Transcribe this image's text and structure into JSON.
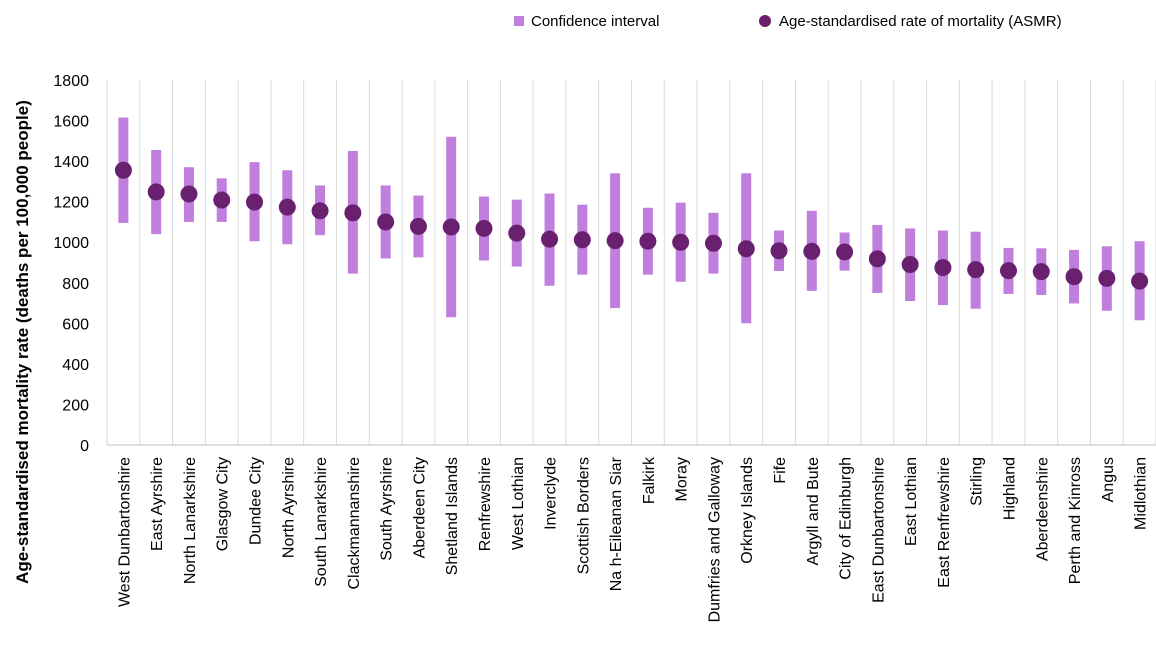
{
  "chart_data": {
    "type": "scatter",
    "title": "",
    "xlabel": "",
    "ylabel": "Age-standardised mortality rate (deaths per 100,000 people)",
    "ylim": [
      0,
      1800
    ],
    "yticks": [
      0,
      200,
      400,
      600,
      800,
      1000,
      1200,
      1400,
      1600,
      1800
    ],
    "grid": "vertical",
    "legend_position": "top-right",
    "categories": [
      "West Dunbartonshire",
      "East Ayrshire",
      "North Lanarkshire",
      "Glasgow City",
      "Dundee City",
      "North Ayrshire",
      "South Lanarkshire",
      "Clackmannanshire",
      "South Ayrshire",
      "Aberdeen City",
      "Shetland Islands",
      "Renfrewshire",
      "West Lothian",
      "Inverclyde",
      "Scottish Borders",
      "Na h-Eileanan Siar",
      "Falkirk",
      "Moray",
      "Dumfries and Galloway",
      "Orkney Islands",
      "Fife",
      "Argyll and Bute",
      "City of Edinburgh",
      "East Dunbartonshire",
      "East Lothian",
      "East Renfrewshire",
      "Stirling",
      "Highland",
      "Aberdeenshire",
      "Perth and Kinross",
      "Angus",
      "Midlothian"
    ],
    "series": [
      {
        "name": "Confidence interval",
        "kind": "range",
        "color": "#c17fdd",
        "low": [
          1095,
          1040,
          1100,
          1100,
          1005,
          990,
          1035,
          845,
          920,
          925,
          630,
          910,
          880,
          785,
          840,
          675,
          840,
          805,
          845,
          600,
          858,
          760,
          860,
          750,
          710,
          690,
          672,
          745,
          740,
          698,
          662,
          615
        ],
        "high": [
          1615,
          1455,
          1370,
          1315,
          1395,
          1355,
          1280,
          1450,
          1280,
          1230,
          1520,
          1225,
          1210,
          1240,
          1185,
          1340,
          1170,
          1195,
          1145,
          1340,
          1058,
          1155,
          1048,
          1085,
          1068,
          1058,
          1052,
          972,
          970,
          962,
          980,
          1005
        ]
      },
      {
        "name": "Age-standardised rate of mortality (ASMR)",
        "kind": "point",
        "color": "#68206f",
        "values": [
          1355,
          1248,
          1238,
          1208,
          1198,
          1173,
          1155,
          1145,
          1100,
          1078,
          1075,
          1068,
          1045,
          1015,
          1012,
          1008,
          1005,
          1000,
          995,
          968,
          958,
          955,
          952,
          918,
          890,
          875,
          865,
          860,
          855,
          830,
          822,
          808
        ]
      }
    ]
  }
}
